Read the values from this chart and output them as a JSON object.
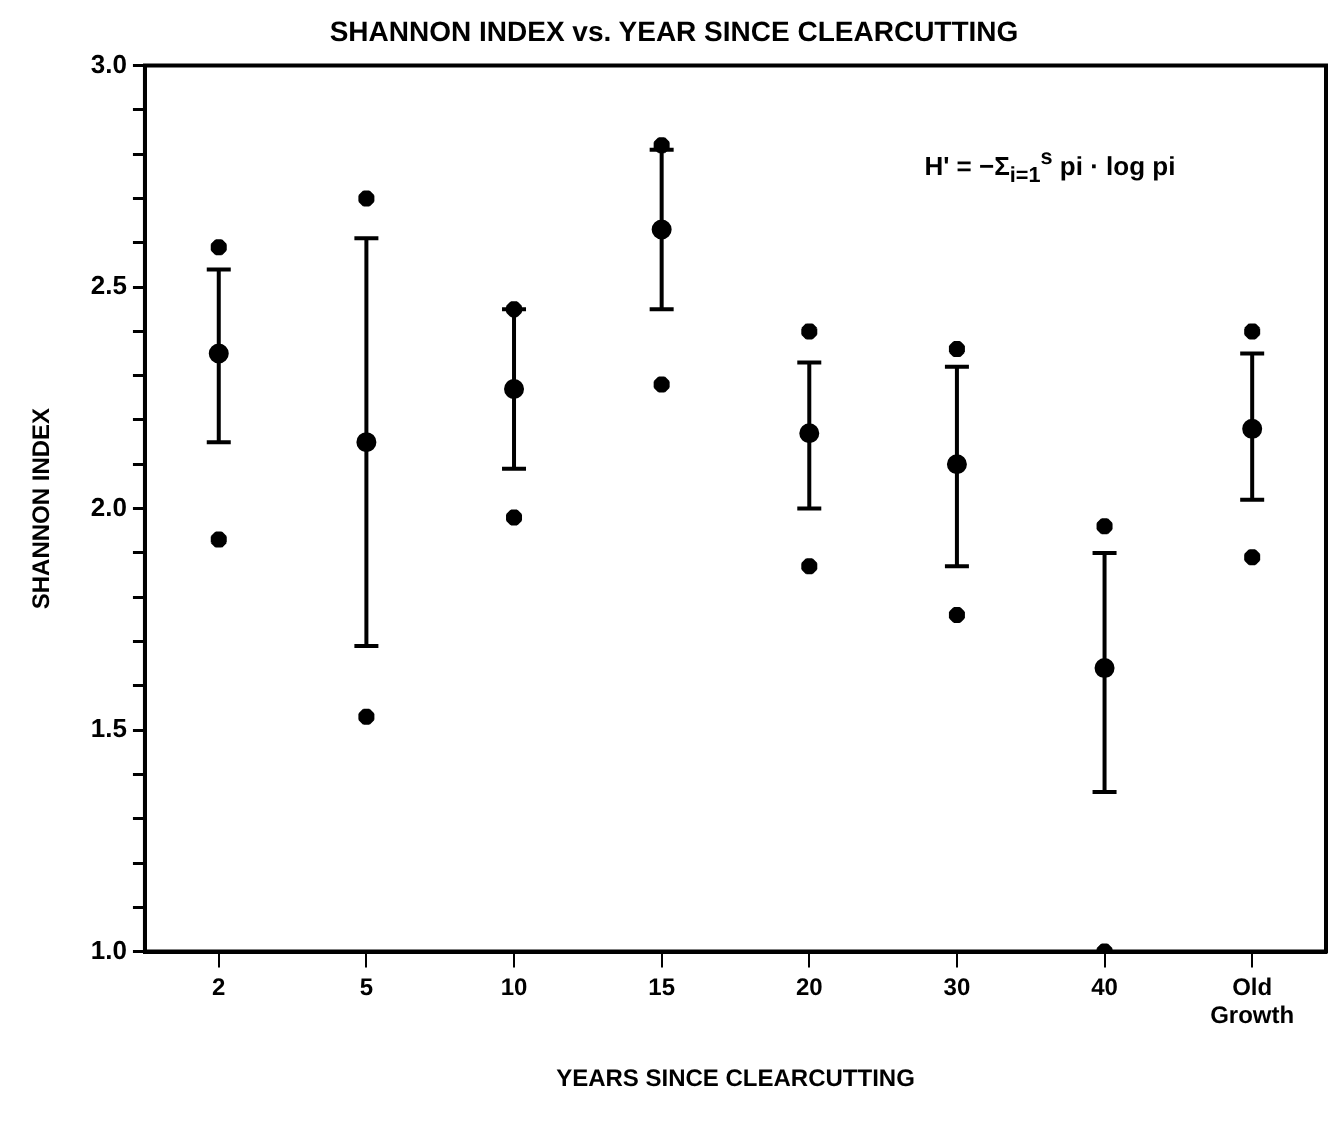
{
  "chart_data": {
    "type": "scatter",
    "title": "SHANNON INDEX vs. YEAR SINCE CLEARCUTTING",
    "xlabel": "YEARS SINCE CLEARCUTTING",
    "ylabel": "SHANNON INDEX",
    "categories": [
      "2",
      "5",
      "10",
      "15",
      "20",
      "30",
      "40",
      "Old Growth"
    ],
    "series": [
      {
        "color": "#000000",
        "marker": "circle",
        "values": [
          2.35,
          2.15,
          2.27,
          2.63,
          2.17,
          2.1,
          1.64,
          2.18
        ],
        "errors": [
          [
            2.15,
            2.54
          ],
          [
            1.69,
            2.61
          ],
          [
            2.09,
            2.45
          ],
          [
            2.45,
            2.81
          ],
          [
            2.0,
            2.33
          ],
          [
            1.87,
            2.32
          ],
          [
            1.36,
            1.9
          ],
          [
            2.02,
            2.35
          ]
        ]
      },
      {
        "color": "#000000",
        "marker": "cross",
        "values": [
          2.59,
          2.7,
          2.45,
          2.82,
          2.4,
          2.36,
          1.96,
          2.4
        ]
      },
      {
        "color": "#000000",
        "marker": "cross",
        "values": [
          1.93,
          1.53,
          1.98,
          2.28,
          1.87,
          1.76,
          1.0,
          1.89
        ]
      }
    ],
    "ylim": [
      1.0,
      3.0
    ],
    "yticks": [
      {
        "value": 1.0,
        "label": "1.0"
      },
      {
        "value": 1.1,
        "label": null
      },
      {
        "value": 1.2,
        "label": null
      },
      {
        "value": 1.3,
        "label": null
      },
      {
        "value": 1.4,
        "label": null
      },
      {
        "value": 1.5,
        "label": "1.5"
      },
      {
        "value": 1.6,
        "label": null
      },
      {
        "value": 1.7,
        "label": null
      },
      {
        "value": 1.8,
        "label": null
      },
      {
        "value": 1.9,
        "label": null
      },
      {
        "value": 2.0,
        "label": "2.0"
      },
      {
        "value": 2.1,
        "label": null
      },
      {
        "value": 2.2,
        "label": null
      },
      {
        "value": 2.3,
        "label": null
      },
      {
        "value": 2.4,
        "label": null
      },
      {
        "value": 2.5,
        "label": "2.5"
      },
      {
        "value": 2.6,
        "label": null
      },
      {
        "value": 2.7,
        "label": null
      },
      {
        "value": 2.8,
        "label": null
      },
      {
        "value": 2.9,
        "label": null
      },
      {
        "value": 3.0,
        "label": "3.0"
      }
    ],
    "annotations": [
      "H' = −Σ$_{i=1}$$^{s}$ pi · log pi"
    ],
    "grid": false,
    "legend": false
  }
}
